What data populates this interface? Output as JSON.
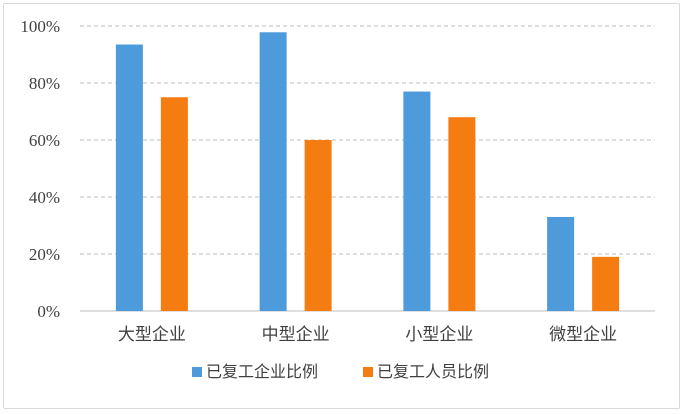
{
  "chart_data": {
    "type": "bar",
    "categories": [
      "大型企业",
      "中型企业",
      "小型企业",
      "微型企业"
    ],
    "series": [
      {
        "name": "已复工企业比例",
        "values": [
          93.5,
          97.8,
          77.0,
          33.0
        ],
        "color": "#4e9bdc"
      },
      {
        "name": "已复工人员比例",
        "values": [
          75.0,
          60.0,
          68.0,
          19.0
        ],
        "color": "#f57c10"
      }
    ],
    "yticks": [
      "0%",
      "20%",
      "40%",
      "60%",
      "80%",
      "100%"
    ],
    "ylim": [
      0,
      100
    ],
    "grid": true,
    "legend_position": "bottom"
  }
}
